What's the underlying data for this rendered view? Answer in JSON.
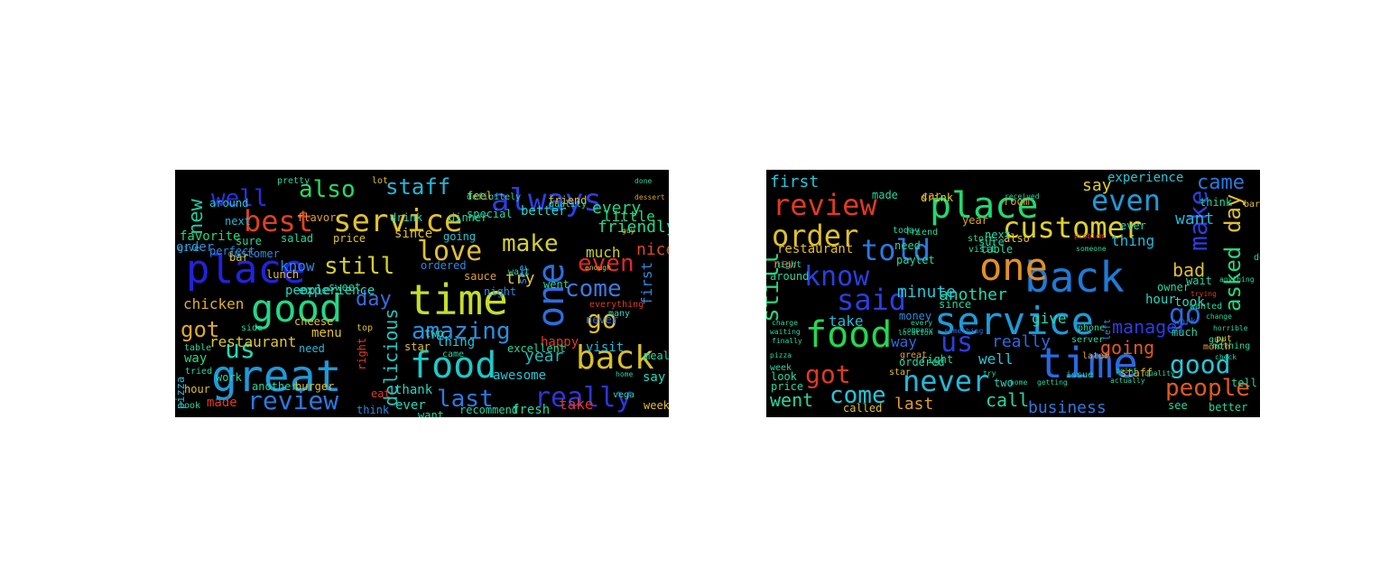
{
  "clouds": [
    {
      "words": [
        {
          "t": "place",
          "c": "#2222dd"
        },
        {
          "t": "great",
          "c": "#1e9ad8"
        },
        {
          "t": "time",
          "c": "#c5dd2a"
        },
        {
          "t": "food",
          "c": "#1fc8c8"
        },
        {
          "t": "good",
          "c": "#22d888"
        },
        {
          "t": "service",
          "c": "#e0c22a"
        },
        {
          "t": "best",
          "c": "#e04020"
        },
        {
          "t": "one",
          "c": "#2b6ee0"
        },
        {
          "t": "always",
          "c": "#2c3ee0"
        },
        {
          "t": "back",
          "c": "#d9c024"
        },
        {
          "t": "really",
          "c": "#2c36d8"
        },
        {
          "t": "amazing",
          "c": "#2a8ee0"
        },
        {
          "t": "love",
          "c": "#e0c030"
        },
        {
          "t": "also",
          "c": "#22dd66"
        },
        {
          "t": "staff",
          "c": "#22b8d8"
        },
        {
          "t": "well",
          "c": "#2a2ee0"
        },
        {
          "t": "still",
          "c": "#d4d02a"
        },
        {
          "t": "make",
          "c": "#d4d02a"
        },
        {
          "t": "come",
          "c": "#3a7ae0"
        },
        {
          "t": "go",
          "c": "#e0c028"
        },
        {
          "t": "even",
          "c": "#e02828"
        },
        {
          "t": "review",
          "c": "#2a7ae0"
        },
        {
          "t": "last",
          "c": "#2a7ae0"
        },
        {
          "t": "got",
          "c": "#e0a828"
        },
        {
          "t": "us",
          "c": "#22d8b8"
        },
        {
          "t": "day",
          "c": "#3a6ae0"
        },
        {
          "t": "new",
          "c": "#20c8a0"
        },
        {
          "t": "every",
          "c": "#22d888"
        },
        {
          "t": "delicious",
          "c": "#20c8c0"
        },
        {
          "t": "first",
          "c": "#2a8ae0"
        },
        {
          "t": "friendly",
          "c": "#22d890"
        },
        {
          "t": "nice",
          "c": "#e04a20"
        },
        {
          "t": "much",
          "c": "#c8d02a"
        },
        {
          "t": "try",
          "c": "#e0c830"
        },
        {
          "t": "year",
          "c": "#22b8b8"
        },
        {
          "t": "restaurant",
          "c": "#e0c828"
        },
        {
          "t": "experience",
          "c": "#22d8c0"
        },
        {
          "t": "people",
          "c": "#22d8c0"
        },
        {
          "t": "know",
          "c": "#2a8ae0"
        },
        {
          "t": "chicken",
          "c": "#e0b028"
        },
        {
          "t": "favorite",
          "c": "#22d870"
        },
        {
          "t": "order",
          "c": "#3a8ae0"
        },
        {
          "t": "menu",
          "c": "#e0c028"
        },
        {
          "t": "happy",
          "c": "#e03a20"
        },
        {
          "t": "thank",
          "c": "#22d8c0"
        },
        {
          "t": "awesome",
          "c": "#22c8d8"
        },
        {
          "t": "visit",
          "c": "#22b8d8"
        },
        {
          "t": "little",
          "c": "#22d880"
        },
        {
          "t": "better",
          "c": "#22d8c0"
        },
        {
          "t": "thing",
          "c": "#22c8d8"
        },
        {
          "t": "since",
          "c": "#e0c028"
        },
        {
          "t": "made",
          "c": "#e03a20"
        },
        {
          "t": "way",
          "c": "#22d880"
        },
        {
          "t": "night",
          "c": "#2a8ae0"
        },
        {
          "t": "went",
          "c": "#22d8a0"
        },
        {
          "t": "say",
          "c": "#22d8c0"
        },
        {
          "t": "take",
          "c": "#e03a20"
        },
        {
          "t": "fresh",
          "c": "#22d8a0"
        },
        {
          "t": "never",
          "c": "#2a6ae0"
        },
        {
          "t": "pizza",
          "c": "#22b8d8"
        },
        {
          "t": "two",
          "c": "#22d8c0"
        },
        {
          "t": "star",
          "c": "#e0c028"
        },
        {
          "t": "ever",
          "c": "#22d8c0"
        },
        {
          "t": "excellent",
          "c": "#22d8a0"
        },
        {
          "t": "price",
          "c": "#e0c028"
        },
        {
          "t": "salad",
          "c": "#22d8a0"
        },
        {
          "t": "drink",
          "c": "#22d8c0"
        },
        {
          "t": "dinner",
          "c": "#22d8a0"
        },
        {
          "t": "customer",
          "c": "#2a8ae0"
        },
        {
          "t": "around",
          "c": "#22c8d8"
        },
        {
          "t": "bar",
          "c": "#e0c028"
        },
        {
          "t": "next",
          "c": "#22b8d8"
        },
        {
          "t": "give",
          "c": "#22b8d8"
        },
        {
          "t": "perfect",
          "c": "#2a8ae0"
        },
        {
          "t": "sure",
          "c": "#22d8a0"
        },
        {
          "t": "flavor",
          "c": "#e0a028"
        },
        {
          "t": "lunch",
          "c": "#e0c028"
        },
        {
          "t": "sweet",
          "c": "#22d8a0"
        },
        {
          "t": "cheese",
          "c": "#e0c028"
        },
        {
          "t": "ordered",
          "c": "#2a8ae0"
        },
        {
          "t": "sauce",
          "c": "#e0a028"
        },
        {
          "t": "going",
          "c": "#22c8d8"
        },
        {
          "t": "special",
          "c": "#22d8a0"
        },
        {
          "t": "feel",
          "c": "#e0c028"
        },
        {
          "t": "definitely",
          "c": "#22d8a0"
        },
        {
          "t": "friend",
          "c": "#e0c028"
        },
        {
          "t": "wait",
          "c": "#22d8c0"
        },
        {
          "t": "see",
          "c": "#2a8ae0"
        },
        {
          "t": "right",
          "c": "#e03a20"
        },
        {
          "t": "work",
          "c": "#22d8a0"
        },
        {
          "t": "need",
          "c": "#22b8d8"
        },
        {
          "t": "another",
          "c": "#22d8a0"
        },
        {
          "t": "burger",
          "c": "#e0c028"
        },
        {
          "t": "eat",
          "c": "#e03a20"
        },
        {
          "t": "think",
          "c": "#2a8ae0"
        },
        {
          "t": "want",
          "c": "#22d8a0"
        },
        {
          "t": "recommend",
          "c": "#22d8a0"
        },
        {
          "t": "hour",
          "c": "#e0c028"
        },
        {
          "t": "table",
          "c": "#22d8a0"
        },
        {
          "t": "tried",
          "c": "#22d8a0"
        },
        {
          "t": "top",
          "c": "#e0c028"
        },
        {
          "t": "side",
          "c": "#22d8a0"
        },
        {
          "t": "meal",
          "c": "#22d8a0"
        },
        {
          "t": "week",
          "c": "#e0c028"
        },
        {
          "t": "came",
          "c": "#22d8a0"
        },
        {
          "t": "everything",
          "c": "#e03a20"
        },
        {
          "t": "many",
          "c": "#22d8c0"
        },
        {
          "t": "home",
          "c": "#22d8a0"
        },
        {
          "t": "quality",
          "c": "#22d8a0"
        },
        {
          "t": "look",
          "c": "#22d8a0"
        },
        {
          "t": "pretty",
          "c": "#22d8a0"
        },
        {
          "t": "lot",
          "c": "#e0c028"
        },
        {
          "t": "done",
          "c": "#22d8a0"
        },
        {
          "t": "dessert",
          "c": "#e0a028"
        },
        {
          "t": "vega",
          "c": "#22d8a0"
        },
        {
          "t": "guy",
          "c": "#e0c028"
        },
        {
          "t": "enough",
          "c": "#e0c028"
        },
        {
          "t": "wonderful",
          "c": "#e0a028"
        }
      ]
    },
    {
      "words": [
        {
          "t": "time",
          "c": "#2a6ae0"
        },
        {
          "t": "back",
          "c": "#1e7ad8"
        },
        {
          "t": "service",
          "c": "#1e9ad8"
        },
        {
          "t": "place",
          "c": "#22d870"
        },
        {
          "t": "food",
          "c": "#22d850"
        },
        {
          "t": "one",
          "c": "#e09028"
        },
        {
          "t": "customer",
          "c": "#e0d028"
        },
        {
          "t": "told",
          "c": "#2a7ae0"
        },
        {
          "t": "said",
          "c": "#2a3ee0"
        },
        {
          "t": "never",
          "c": "#22b8d8"
        },
        {
          "t": "review",
          "c": "#e03a20"
        },
        {
          "t": "even",
          "c": "#1e9ad8"
        },
        {
          "t": "order",
          "c": "#e0c028"
        },
        {
          "t": "know",
          "c": "#2a3ee0"
        },
        {
          "t": "go",
          "c": "#2a6ae0"
        },
        {
          "t": "us",
          "c": "#2a3ee0"
        },
        {
          "t": "got",
          "c": "#e03a20"
        },
        {
          "t": "people",
          "c": "#e05a20"
        },
        {
          "t": "still",
          "c": "#22d880"
        },
        {
          "t": "make",
          "c": "#2a3ee0"
        },
        {
          "t": "day",
          "c": "#e0c028"
        },
        {
          "t": "asked",
          "c": "#22d880"
        },
        {
          "t": "good",
          "c": "#22c8d8"
        },
        {
          "t": "come",
          "c": "#22c8d8"
        },
        {
          "t": "went",
          "c": "#22d8a0"
        },
        {
          "t": "came",
          "c": "#2a7ae0"
        },
        {
          "t": "first",
          "c": "#22c8d8"
        },
        {
          "t": "manager",
          "c": "#2a3ee0"
        },
        {
          "t": "really",
          "c": "#2a6ae0"
        },
        {
          "t": "another",
          "c": "#22d8b0"
        },
        {
          "t": "minute",
          "c": "#22c8d8"
        },
        {
          "t": "say",
          "c": "#e0d028"
        },
        {
          "t": "call",
          "c": "#22d8a0"
        },
        {
          "t": "business",
          "c": "#2a7ae0"
        },
        {
          "t": "last",
          "c": "#e0a028"
        },
        {
          "t": "going",
          "c": "#e05a20"
        },
        {
          "t": "bad",
          "c": "#e0c028"
        },
        {
          "t": "want",
          "c": "#22b8d8"
        },
        {
          "t": "take",
          "c": "#22b8d8"
        },
        {
          "t": "well",
          "c": "#22c8d8"
        },
        {
          "t": "give",
          "c": "#22d8b0"
        },
        {
          "t": "way",
          "c": "#2a6ae0"
        },
        {
          "t": "experience",
          "c": "#22c8d8"
        },
        {
          "t": "thing",
          "c": "#22b8d8"
        },
        {
          "t": "restaurant",
          "c": "#e0c028"
        },
        {
          "t": "hour",
          "c": "#22d8c0"
        },
        {
          "t": "owner",
          "c": "#22d8a0"
        },
        {
          "t": "took",
          "c": "#22d8c0"
        },
        {
          "t": "new",
          "c": "#e03a20"
        },
        {
          "t": "drink",
          "c": "#e0d028"
        },
        {
          "t": "ordered",
          "c": "#22d8a0"
        },
        {
          "t": "since",
          "c": "#22d8a0"
        },
        {
          "t": "table",
          "c": "#22d8a0"
        },
        {
          "t": "money",
          "c": "#2a8ae0"
        },
        {
          "t": "two",
          "c": "#22d8c0"
        },
        {
          "t": "called",
          "c": "#e0c028"
        },
        {
          "t": "right",
          "c": "#22d8a0"
        },
        {
          "t": "much",
          "c": "#22d8a0"
        },
        {
          "t": "also",
          "c": "#e0c028"
        },
        {
          "t": "next",
          "c": "#22d8a0"
        },
        {
          "t": "wait",
          "c": "#22d8a0"
        },
        {
          "t": "made",
          "c": "#22d8a0"
        },
        {
          "t": "car",
          "c": "#e0a028"
        },
        {
          "t": "room",
          "c": "#e0a028"
        },
        {
          "t": "year",
          "c": "#e0a028"
        },
        {
          "t": "sure",
          "c": "#22d8a0"
        },
        {
          "t": "staff",
          "c": "#e0c028"
        },
        {
          "t": "ever",
          "c": "#22d8c0"
        },
        {
          "t": "think",
          "c": "#22d8a0"
        },
        {
          "t": "need",
          "c": "#22d8a0"
        },
        {
          "t": "pay",
          "c": "#22d8a0"
        },
        {
          "t": "let",
          "c": "#22d8a0"
        },
        {
          "t": "night",
          "c": "#22d8a0"
        },
        {
          "t": "around",
          "c": "#22d8a0"
        },
        {
          "t": "week",
          "c": "#22d8a0"
        },
        {
          "t": "look",
          "c": "#22d8a0"
        },
        {
          "t": "price",
          "c": "#22d8a0"
        },
        {
          "t": "great",
          "c": "#e0a028"
        },
        {
          "t": "star",
          "c": "#e0c028"
        },
        {
          "t": "month",
          "c": "#e0a028"
        },
        {
          "t": "nothing",
          "c": "#22d8a0"
        },
        {
          "t": "work",
          "c": "#2a6ae0"
        },
        {
          "t": "left",
          "c": "#2a8ae0"
        },
        {
          "t": "see",
          "c": "#22d8a0"
        },
        {
          "t": "better",
          "c": "#22d8a0"
        },
        {
          "t": "tell",
          "c": "#22d8a0"
        },
        {
          "t": "wanted",
          "c": "#22d8a0"
        },
        {
          "t": "guy",
          "c": "#22d8a0"
        },
        {
          "t": "put",
          "c": "#e0c028"
        },
        {
          "t": "bar",
          "c": "#e0c028"
        },
        {
          "t": "done",
          "c": "#22d8a0"
        },
        {
          "t": "server",
          "c": "#22d8a0"
        },
        {
          "t": "later",
          "c": "#e0a028"
        },
        {
          "t": "phone",
          "c": "#22d8a0"
        },
        {
          "t": "issue",
          "c": "#22d8a0"
        },
        {
          "t": "friend",
          "c": "#22d8a0"
        },
        {
          "t": "today",
          "c": "#22d8a0"
        },
        {
          "t": "store",
          "c": "#22d8a0"
        },
        {
          "t": "visit",
          "c": "#22d8a0"
        },
        {
          "t": "finally",
          "c": "#22d8a0"
        },
        {
          "t": "company",
          "c": "#22d8a0"
        },
        {
          "t": "location",
          "c": "#22d8a0"
        },
        {
          "t": "something",
          "c": "#2a6ae0"
        },
        {
          "t": "received",
          "c": "#22d8a0"
        },
        {
          "t": "horrible",
          "c": "#22d8a0"
        },
        {
          "t": "anything",
          "c": "#22d8a0"
        },
        {
          "t": "change",
          "c": "#22d8a0"
        },
        {
          "t": "check",
          "c": "#22d8a0"
        },
        {
          "t": "problem",
          "c": "#e03a20"
        },
        {
          "t": "getting",
          "c": "#22d8a0"
        },
        {
          "t": "someone",
          "c": "#22d8a0"
        },
        {
          "t": "charge",
          "c": "#22d8a0"
        },
        {
          "t": "every",
          "c": "#22d8a0"
        },
        {
          "t": "try",
          "c": "#22d8a0"
        },
        {
          "t": "home",
          "c": "#22d8a0"
        },
        {
          "t": "point",
          "c": "#22d8a0"
        },
        {
          "t": "waiting",
          "c": "#22d8a0"
        },
        {
          "t": "pizza",
          "c": "#22d8a0"
        },
        {
          "t": "trying",
          "c": "#e03a20"
        },
        {
          "t": "actually",
          "c": "#22d8a0"
        },
        {
          "t": "quality",
          "c": "#22d8a0"
        }
      ]
    }
  ]
}
